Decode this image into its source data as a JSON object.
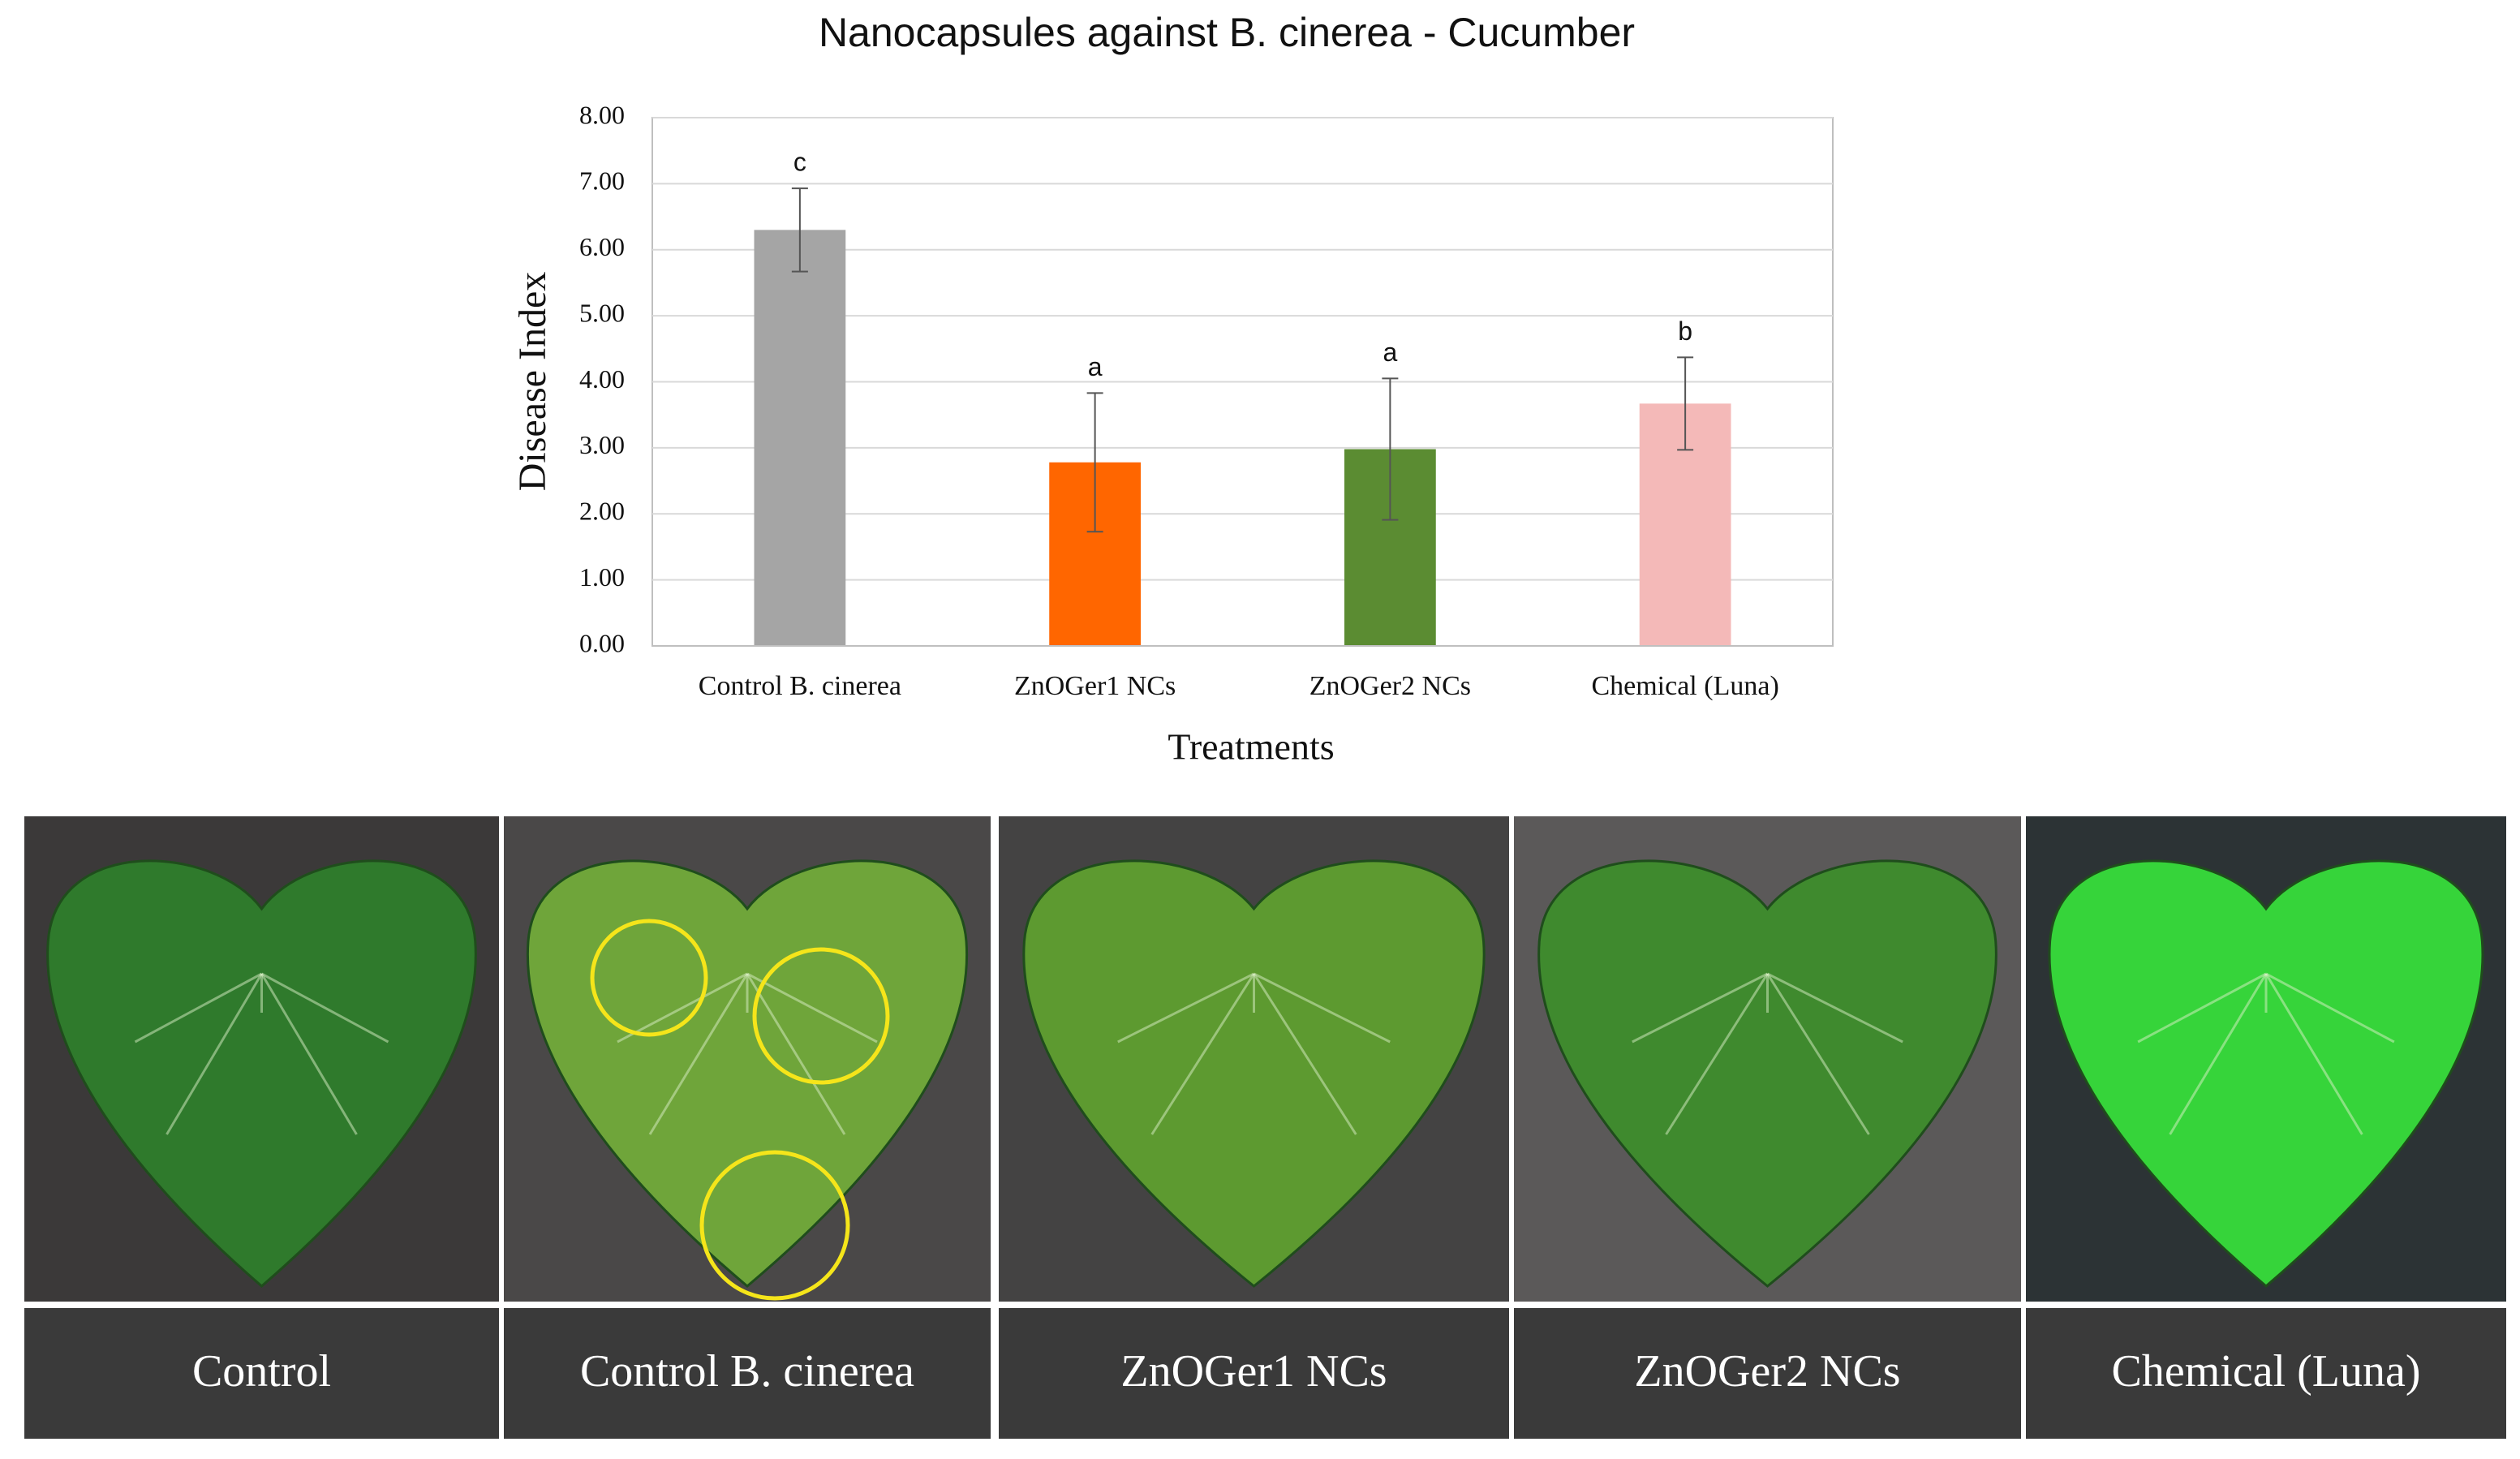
{
  "chart_data": {
    "type": "bar",
    "title": "Nanocapsules against B. cinerea - Cucumber",
    "x_label": "Treatments",
    "y_label": "Disease Index",
    "categories": [
      "Control B. cinerea",
      "ZnOGer1 NCs",
      "ZnOGer2 NCs",
      "Chemical (Luna)"
    ],
    "values": [
      6.3,
      2.78,
      2.98,
      3.67
    ],
    "errors": [
      0.63,
      1.05,
      1.07,
      0.7
    ],
    "significance": [
      "c",
      "a",
      "a",
      "b"
    ],
    "colors": [
      "#a5a5a5",
      "#ff6600",
      "#5b8c32",
      "#f4b9b8"
    ],
    "ylim": [
      0,
      8
    ],
    "yticks": [
      {
        "value": 0,
        "label": "0.00"
      },
      {
        "value": 1,
        "label": "1.00"
      },
      {
        "value": 2,
        "label": "2.00"
      },
      {
        "value": 3,
        "label": "3.00"
      },
      {
        "value": 4,
        "label": "4.00"
      },
      {
        "value": 5,
        "label": "5.00"
      },
      {
        "value": 6,
        "label": "6.00"
      },
      {
        "value": 7,
        "label": "7.00"
      },
      {
        "value": 8,
        "label": "8.00"
      }
    ],
    "grid": true
  },
  "panels": [
    {
      "caption": "Control"
    },
    {
      "caption": "Control B. cinerea"
    },
    {
      "caption": "ZnOGer1 NCs"
    },
    {
      "caption": "ZnOGer2 NCs"
    },
    {
      "caption": "Chemical (Luna)"
    }
  ]
}
